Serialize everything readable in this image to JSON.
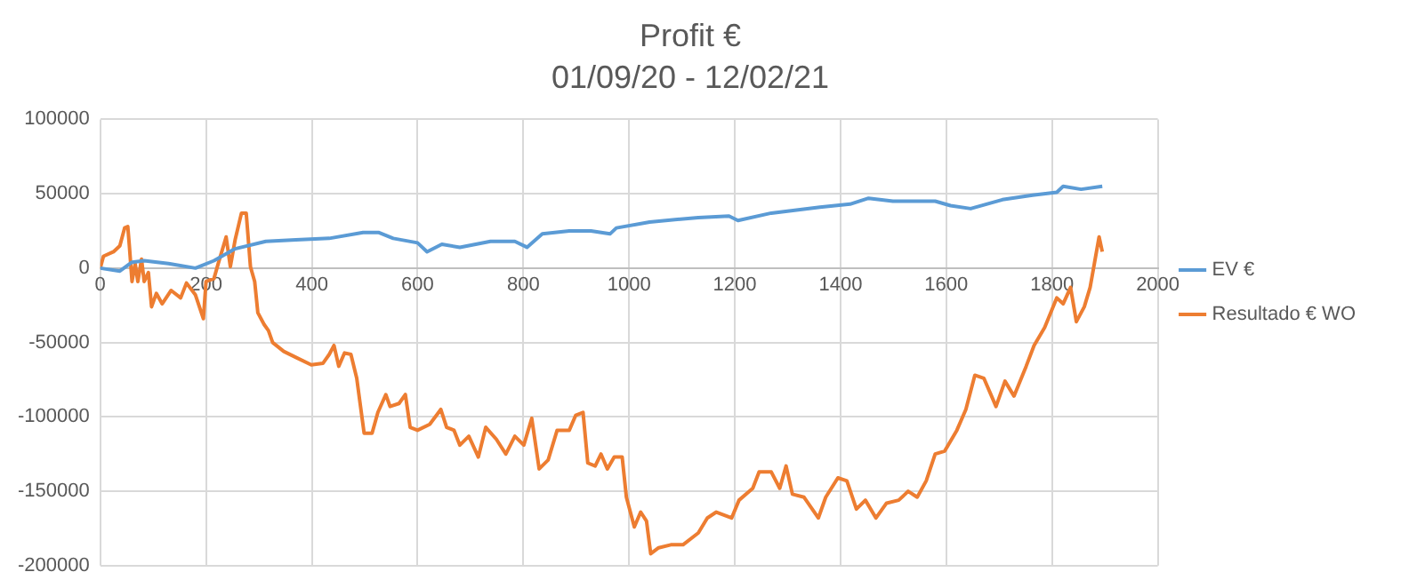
{
  "chart_data": {
    "type": "line",
    "title": "Profit €",
    "subtitle": "01/09/20 - 12/02/21",
    "xlim": [
      0,
      2000
    ],
    "xticks": [
      0,
      200,
      400,
      600,
      800,
      1000,
      1200,
      1400,
      1600,
      1800,
      2000
    ],
    "ylim": [
      -200000,
      100000
    ],
    "yticks": [
      -200000,
      -150000,
      -100000,
      -50000,
      0,
      50000,
      100000
    ],
    "grid": true,
    "legend": "right",
    "marker": "none",
    "line_style": "solid",
    "series": [
      {
        "name": "EV €",
        "color": "#5b9bd5",
        "x": [
          0,
          37,
          60,
          83,
          129,
          180,
          215,
          255,
          313,
          370,
          433,
          497,
          526,
          554,
          600,
          618,
          646,
          680,
          738,
          784,
          807,
          836,
          887,
          928,
          964,
          976,
          1039,
          1131,
          1189,
          1206,
          1269,
          1361,
          1418,
          1453,
          1499,
          1579,
          1608,
          1646,
          1706,
          1763,
          1809,
          1821,
          1855,
          1895
        ],
        "values": [
          0,
          -2000,
          4000,
          5000,
          3000,
          0,
          5000,
          13000,
          18000,
          19000,
          20000,
          24000,
          24000,
          20000,
          17000,
          11000,
          16000,
          14000,
          18000,
          18000,
          14000,
          23000,
          25000,
          25000,
          23000,
          27000,
          31000,
          34000,
          35000,
          32000,
          37000,
          41000,
          43000,
          47000,
          45000,
          45000,
          42000,
          40000,
          46000,
          49000,
          51000,
          55000,
          53000,
          55000
        ]
      },
      {
        "name": "Resultado € WO",
        "color": "#ed7d31",
        "x": [
          0,
          6,
          25,
          37,
          46,
          52,
          55,
          60,
          66,
          71,
          78,
          83,
          91,
          97,
          106,
          117,
          134,
          152,
          163,
          180,
          195,
          200,
          215,
          223,
          238,
          246,
          255,
          267,
          276,
          284,
          292,
          298,
          310,
          318,
          326,
          347,
          370,
          399,
          421,
          433,
          442,
          451,
          462,
          474,
          485,
          491,
          499,
          514,
          525,
          540,
          548,
          565,
          577,
          586,
          600,
          623,
          644,
          655,
          669,
          680,
          697,
          715,
          729,
          749,
          767,
          784,
          801,
          816,
          830,
          847,
          864,
          887,
          899,
          913,
          922,
          936,
          947,
          959,
          972,
          987,
          995,
          1010,
          1022,
          1033,
          1041,
          1056,
          1079,
          1102,
          1131,
          1148,
          1165,
          1194,
          1208,
          1234,
          1246,
          1269,
          1285,
          1297,
          1309,
          1331,
          1358,
          1372,
          1395,
          1412,
          1430,
          1447,
          1467,
          1487,
          1510,
          1528,
          1545,
          1562,
          1579,
          1597,
          1620,
          1637,
          1654,
          1671,
          1694,
          1711,
          1728,
          1751,
          1766,
          1786,
          1809,
          1821,
          1835,
          1846,
          1861,
          1872,
          1880,
          1889,
          1895
        ],
        "values": [
          0,
          8000,
          11000,
          15000,
          27000,
          28000,
          15000,
          -9000,
          3000,
          -9000,
          6000,
          -9000,
          -3000,
          -26000,
          -17000,
          -24000,
          -15000,
          -20000,
          -10000,
          -18000,
          -34000,
          -9000,
          -7000,
          3000,
          21000,
          1000,
          19000,
          37000,
          37000,
          1000,
          -9000,
          -30000,
          -38000,
          -42000,
          -50000,
          -56000,
          -60000,
          -65000,
          -64000,
          -58000,
          -52000,
          -66000,
          -57000,
          -58000,
          -74000,
          -90000,
          -111000,
          -111000,
          -97000,
          -85000,
          -93000,
          -91000,
          -85000,
          -107000,
          -109000,
          -105000,
          -95000,
          -107000,
          -109000,
          -119000,
          -113000,
          -127000,
          -107000,
          -115000,
          -125000,
          -113000,
          -119000,
          -101000,
          -135000,
          -129000,
          -109000,
          -109000,
          -99000,
          -97000,
          -131000,
          -133000,
          -125000,
          -135000,
          -127000,
          -127000,
          -154000,
          -174000,
          -164000,
          -170000,
          -192000,
          -188000,
          -186000,
          -186000,
          -178000,
          -168000,
          -164000,
          -168000,
          -156000,
          -148000,
          -137000,
          -137000,
          -148000,
          -133000,
          -152000,
          -154000,
          -168000,
          -154000,
          -141000,
          -143000,
          -162000,
          -156000,
          -168000,
          -158000,
          -156000,
          -150000,
          -154000,
          -143000,
          -125000,
          -123000,
          -109000,
          -95000,
          -72000,
          -74000,
          -93000,
          -76000,
          -86000,
          -66000,
          -52000,
          -40000,
          -20000,
          -24000,
          -13000,
          -36000,
          -26000,
          -13000,
          3000,
          21000,
          11000
        ]
      }
    ]
  }
}
